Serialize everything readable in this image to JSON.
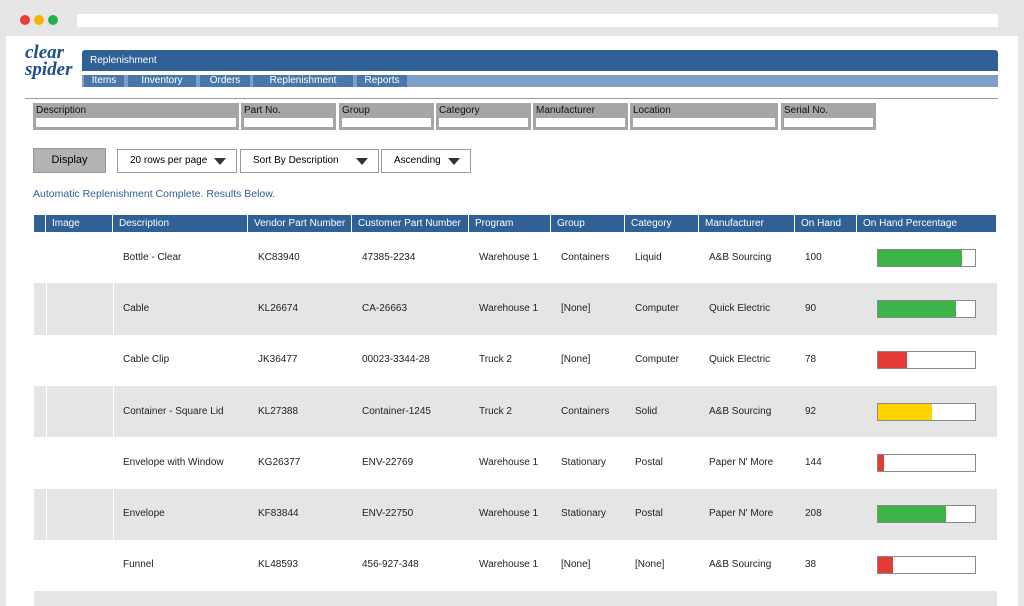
{
  "logo": {
    "line1": "clear",
    "line2": "spider"
  },
  "header": {
    "title": "Replenishment"
  },
  "nav": [
    "Items",
    "Inventory",
    "Orders",
    "Replenishment",
    "Reports"
  ],
  "filters": [
    "Description",
    "Part No.",
    "Group",
    "Category",
    "Manufacturer",
    "Location",
    "Serial No."
  ],
  "controls": {
    "display": "Display",
    "rows_per_page": "20 rows per page",
    "sort": "Sort By Description",
    "order": "Ascending"
  },
  "message": "Automatic Replenishment Complete. Results Below.",
  "table": {
    "columns": [
      "Image",
      "Description",
      "Vendor Part Number",
      "Customer Part Number",
      "Program",
      "Group",
      "Category",
      "Manufacturer",
      "On Hand",
      "On Hand Percentage"
    ],
    "rows": [
      {
        "cells": [
          "Bottle - Clear",
          "KC83940",
          "47385-2234",
          "Warehouse 1",
          "Containers",
          "Liquid",
          "A&B Sourcing",
          100
        ],
        "percentage": 87,
        "color": "#3bb54a"
      },
      {
        "cells": [
          "Cable",
          "KL26674",
          "CA-26663",
          "Warehouse 1",
          "[None]",
          "Computer",
          "Quick Electric",
          90
        ],
        "percentage": 80,
        "color": "#3bb54a"
      },
      {
        "cells": [
          "Cable Clip",
          "JK36477",
          "00023-3344-28",
          "Truck 2",
          "[None]",
          "Computer",
          "Quick Electric",
          78
        ],
        "percentage": 30,
        "color": "#e53935"
      },
      {
        "cells": [
          "Container - Square Lid",
          "KL27388",
          "Container-1245",
          "Truck 2",
          "Containers",
          "Solid",
          "A&B Sourcing",
          92
        ],
        "percentage": 56,
        "color": "#ffd200"
      },
      {
        "cells": [
          "Envelope with Window",
          "KG26377",
          "ENV-22769",
          "Warehouse 1",
          "Stationary",
          "Postal",
          "Paper N' More",
          144
        ],
        "percentage": 6,
        "color": "#e53935"
      },
      {
        "cells": [
          "Envelope",
          "KF83844",
          "ENV-22750",
          "Warehouse 1",
          "Stationary",
          "Postal",
          "Paper N' More",
          208
        ],
        "percentage": 70,
        "color": "#3bb54a"
      },
      {
        "cells": [
          "Funnel",
          "KL48593",
          "456-927-348",
          "Warehouse 1",
          "[None]",
          "[None]",
          "A&B Sourcing",
          38
        ],
        "percentage": 15,
        "color": "#e53935"
      }
    ]
  }
}
